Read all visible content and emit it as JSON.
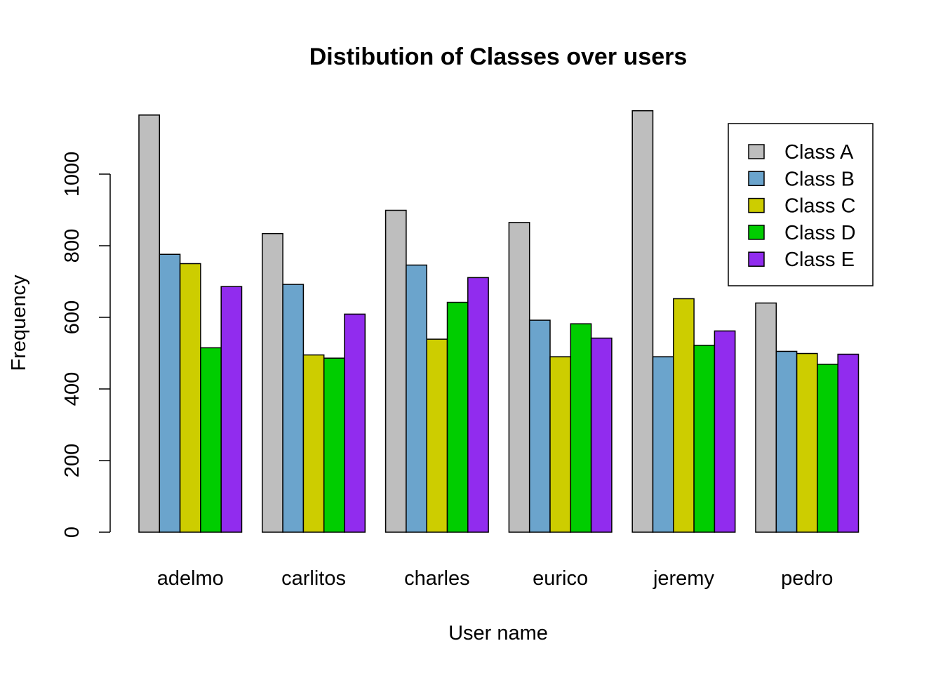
{
  "chart_data": {
    "type": "bar",
    "title": "Distibution of Classes over users",
    "xlabel": "User name",
    "ylabel": "Frequency",
    "categories": [
      "adelmo",
      "carlitos",
      "charles",
      "eurico",
      "jeremy",
      "pedro"
    ],
    "series": [
      {
        "name": "Class A",
        "color": "#bebebe",
        "values": [
          1165,
          834,
          899,
          865,
          1177,
          640
        ]
      },
      {
        "name": "Class B",
        "color": "#6ba4cc",
        "values": [
          776,
          692,
          746,
          592,
          490,
          505
        ]
      },
      {
        "name": "Class C",
        "color": "#cdcd00",
        "values": [
          750,
          495,
          539,
          490,
          652,
          499
        ]
      },
      {
        "name": "Class D",
        "color": "#00cd00",
        "values": [
          515,
          486,
          642,
          582,
          522,
          469
        ]
      },
      {
        "name": "Class E",
        "color": "#912cee",
        "values": [
          686,
          609,
          711,
          542,
          562,
          497
        ]
      }
    ],
    "yticks": [
      0,
      200,
      400,
      600,
      800,
      1000
    ],
    "ylim": [
      0,
      1250
    ],
    "grid": false,
    "legend_position": "top-right"
  }
}
